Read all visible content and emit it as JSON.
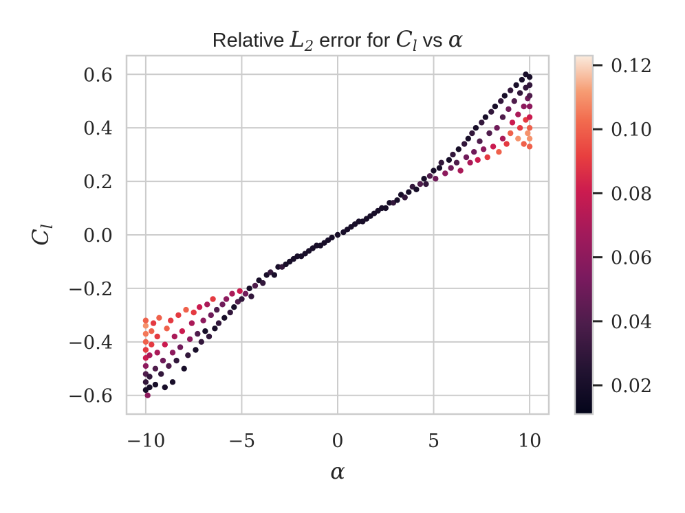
{
  "chart_data": {
    "type": "scatter",
    "title": {
      "prefix": "Relative ",
      "sym1": "L",
      "sub1": "2",
      "middle": " error for ",
      "sym2": "C",
      "sub2": "l",
      "suffix": " vs ",
      "sym3": "α"
    },
    "xlabel": "α",
    "ylabel_main": "C",
    "ylabel_sub": "l",
    "xlim": [
      -11,
      11
    ],
    "ylim": [
      -0.67,
      0.67
    ],
    "xticks": [
      -10,
      -5,
      0,
      5,
      10
    ],
    "xtick_labels": [
      "−10",
      "−5",
      "0",
      "5",
      "10"
    ],
    "yticks": [
      -0.6,
      -0.4,
      -0.2,
      0.0,
      0.2,
      0.4,
      0.6
    ],
    "ytick_labels": [
      "−0.6",
      "−0.4",
      "−0.2",
      "0.0",
      "0.2",
      "0.4",
      "0.6"
    ],
    "grid": true,
    "colormap": "rocket",
    "colorbar": {
      "range": [
        0.011,
        0.123
      ],
      "ticks": [
        0.02,
        0.04,
        0.06,
        0.08,
        0.1,
        0.12
      ],
      "tick_labels": [
        "0.02",
        "0.04",
        "0.06",
        "0.08",
        "0.10",
        "0.12"
      ]
    },
    "points": [
      [
        -10.0,
        -0.58,
        0.02
      ],
      [
        -10.0,
        -0.55,
        0.03
      ],
      [
        -10.0,
        -0.52,
        0.04
      ],
      [
        -10.0,
        -0.49,
        0.06
      ],
      [
        -10.0,
        -0.46,
        0.08
      ],
      [
        -10.0,
        -0.43,
        0.09
      ],
      [
        -10.0,
        -0.4,
        0.1
      ],
      [
        -10.0,
        -0.37,
        0.105
      ],
      [
        -10.0,
        -0.34,
        0.11
      ],
      [
        -10.0,
        -0.32,
        0.1
      ],
      [
        -9.9,
        -0.6,
        0.06
      ],
      [
        -9.8,
        -0.57,
        0.02
      ],
      [
        -9.8,
        -0.53,
        0.03
      ],
      [
        -9.8,
        -0.45,
        0.07
      ],
      [
        -9.7,
        -0.41,
        0.09
      ],
      [
        -9.7,
        -0.36,
        0.1
      ],
      [
        -9.6,
        -0.33,
        0.09
      ],
      [
        -9.5,
        -0.56,
        0.02
      ],
      [
        -9.5,
        -0.5,
        0.04
      ],
      [
        -9.4,
        -0.44,
        0.07
      ],
      [
        -9.4,
        -0.38,
        0.09
      ],
      [
        -9.3,
        -0.31,
        0.1
      ],
      [
        -9.2,
        -0.52,
        0.03
      ],
      [
        -9.1,
        -0.47,
        0.05
      ],
      [
        -9.0,
        -0.57,
        0.02
      ],
      [
        -9.0,
        -0.41,
        0.08
      ],
      [
        -8.9,
        -0.35,
        0.1
      ],
      [
        -8.8,
        -0.49,
        0.04
      ],
      [
        -8.7,
        -0.32,
        0.09
      ],
      [
        -8.6,
        -0.44,
        0.06
      ],
      [
        -8.6,
        -0.55,
        0.02
      ],
      [
        -8.5,
        -0.38,
        0.07
      ],
      [
        -8.4,
        -0.47,
        0.03
      ],
      [
        -8.3,
        -0.3,
        0.09
      ],
      [
        -8.2,
        -0.42,
        0.05
      ],
      [
        -8.1,
        -0.36,
        0.08
      ],
      [
        -8.0,
        -0.5,
        0.02
      ],
      [
        -7.9,
        -0.28,
        0.1
      ],
      [
        -7.8,
        -0.45,
        0.03
      ],
      [
        -7.7,
        -0.39,
        0.06
      ],
      [
        -7.6,
        -0.33,
        0.07
      ],
      [
        -7.5,
        -0.29,
        0.09
      ],
      [
        -7.4,
        -0.43,
        0.02
      ],
      [
        -7.3,
        -0.37,
        0.04
      ],
      [
        -7.2,
        -0.27,
        0.08
      ],
      [
        -7.1,
        -0.4,
        0.03
      ],
      [
        -7.0,
        -0.32,
        0.06
      ],
      [
        -6.9,
        -0.36,
        0.02
      ],
      [
        -6.8,
        -0.26,
        0.07
      ],
      [
        -6.7,
        -0.38,
        0.03
      ],
      [
        -6.6,
        -0.3,
        0.05
      ],
      [
        -6.5,
        -0.24,
        0.09
      ],
      [
        -6.4,
        -0.35,
        0.02
      ],
      [
        -6.3,
        -0.28,
        0.04
      ],
      [
        -6.2,
        -0.33,
        0.03
      ],
      [
        -6.0,
        -0.26,
        0.05
      ],
      [
        -5.9,
        -0.31,
        0.02
      ],
      [
        -5.8,
        -0.24,
        0.06
      ],
      [
        -5.6,
        -0.29,
        0.03
      ],
      [
        -5.5,
        -0.22,
        0.07
      ],
      [
        -5.4,
        -0.27,
        0.02
      ],
      [
        -5.2,
        -0.25,
        0.04
      ],
      [
        -5.1,
        -0.21,
        0.08
      ],
      [
        -5.0,
        -0.24,
        0.03
      ],
      [
        -4.8,
        -0.22,
        0.05
      ],
      [
        -4.6,
        -0.2,
        0.02
      ],
      [
        -4.5,
        -0.23,
        0.03
      ],
      [
        -4.3,
        -0.19,
        0.04
      ],
      [
        -4.1,
        -0.17,
        0.02
      ],
      [
        -3.9,
        -0.18,
        0.03
      ],
      [
        -3.7,
        -0.15,
        0.02
      ],
      [
        -3.5,
        -0.14,
        0.03
      ],
      [
        -3.3,
        -0.15,
        0.02
      ],
      [
        -3.1,
        -0.12,
        0.02
      ],
      [
        -2.9,
        -0.12,
        0.03
      ],
      [
        -2.7,
        -0.11,
        0.02
      ],
      [
        -2.5,
        -0.1,
        0.02
      ],
      [
        -2.3,
        -0.09,
        0.02
      ],
      [
        -2.1,
        -0.08,
        0.02
      ],
      [
        -1.9,
        -0.08,
        0.02
      ],
      [
        -1.7,
        -0.07,
        0.02
      ],
      [
        -1.5,
        -0.06,
        0.02
      ],
      [
        -1.3,
        -0.05,
        0.02
      ],
      [
        -1.1,
        -0.04,
        0.02
      ],
      [
        -0.9,
        -0.04,
        0.02
      ],
      [
        -0.7,
        -0.03,
        0.02
      ],
      [
        -0.5,
        -0.02,
        0.02
      ],
      [
        -0.3,
        -0.01,
        0.02
      ],
      [
        0.0,
        0.0,
        0.02
      ],
      [
        0.3,
        0.01,
        0.02
      ],
      [
        0.5,
        0.02,
        0.02
      ],
      [
        0.7,
        0.03,
        0.02
      ],
      [
        0.9,
        0.04,
        0.02
      ],
      [
        1.1,
        0.05,
        0.02
      ],
      [
        1.3,
        0.05,
        0.02
      ],
      [
        1.5,
        0.06,
        0.02
      ],
      [
        1.7,
        0.07,
        0.02
      ],
      [
        1.9,
        0.08,
        0.02
      ],
      [
        2.1,
        0.09,
        0.02
      ],
      [
        2.3,
        0.1,
        0.02
      ],
      [
        2.5,
        0.1,
        0.02
      ],
      [
        2.7,
        0.12,
        0.02
      ],
      [
        2.9,
        0.12,
        0.03
      ],
      [
        3.1,
        0.13,
        0.02
      ],
      [
        3.3,
        0.15,
        0.02
      ],
      [
        3.5,
        0.14,
        0.03
      ],
      [
        3.7,
        0.16,
        0.02
      ],
      [
        3.9,
        0.18,
        0.03
      ],
      [
        4.1,
        0.17,
        0.02
      ],
      [
        4.3,
        0.19,
        0.04
      ],
      [
        4.5,
        0.21,
        0.02
      ],
      [
        4.6,
        0.19,
        0.03
      ],
      [
        4.8,
        0.22,
        0.04
      ],
      [
        5.0,
        0.24,
        0.02
      ],
      [
        5.1,
        0.21,
        0.05
      ],
      [
        5.3,
        0.25,
        0.02
      ],
      [
        5.4,
        0.27,
        0.03
      ],
      [
        5.6,
        0.23,
        0.06
      ],
      [
        5.8,
        0.28,
        0.02
      ],
      [
        5.9,
        0.25,
        0.05
      ],
      [
        6.0,
        0.3,
        0.03
      ],
      [
        6.2,
        0.27,
        0.04
      ],
      [
        6.3,
        0.32,
        0.02
      ],
      [
        6.4,
        0.24,
        0.07
      ],
      [
        6.6,
        0.34,
        0.03
      ],
      [
        6.7,
        0.29,
        0.05
      ],
      [
        6.8,
        0.36,
        0.02
      ],
      [
        6.9,
        0.27,
        0.07
      ],
      [
        7.0,
        0.38,
        0.03
      ],
      [
        7.1,
        0.31,
        0.05
      ],
      [
        7.2,
        0.4,
        0.02
      ],
      [
        7.3,
        0.28,
        0.08
      ],
      [
        7.4,
        0.35,
        0.04
      ],
      [
        7.5,
        0.42,
        0.03
      ],
      [
        7.6,
        0.32,
        0.06
      ],
      [
        7.7,
        0.44,
        0.02
      ],
      [
        7.8,
        0.29,
        0.09
      ],
      [
        7.9,
        0.38,
        0.04
      ],
      [
        8.0,
        0.46,
        0.03
      ],
      [
        8.1,
        0.33,
        0.08
      ],
      [
        8.2,
        0.48,
        0.02
      ],
      [
        8.3,
        0.4,
        0.05
      ],
      [
        8.4,
        0.31,
        0.1
      ],
      [
        8.5,
        0.5,
        0.03
      ],
      [
        8.6,
        0.36,
        0.07
      ],
      [
        8.6,
        0.44,
        0.04
      ],
      [
        8.7,
        0.52,
        0.02
      ],
      [
        8.8,
        0.34,
        0.09
      ],
      [
        8.9,
        0.47,
        0.05
      ],
      [
        9.0,
        0.54,
        0.03
      ],
      [
        9.0,
        0.38,
        0.1
      ],
      [
        9.1,
        0.42,
        0.08
      ],
      [
        9.2,
        0.5,
        0.04
      ],
      [
        9.3,
        0.56,
        0.02
      ],
      [
        9.4,
        0.36,
        0.11
      ],
      [
        9.4,
        0.45,
        0.07
      ],
      [
        9.5,
        0.53,
        0.03
      ],
      [
        9.5,
        0.4,
        0.09
      ],
      [
        9.6,
        0.58,
        0.02
      ],
      [
        9.7,
        0.34,
        0.1
      ],
      [
        9.7,
        0.48,
        0.06
      ],
      [
        9.8,
        0.55,
        0.03
      ],
      [
        9.8,
        0.43,
        0.09
      ],
      [
        9.8,
        0.6,
        0.02
      ],
      [
        9.9,
        0.38,
        0.11
      ],
      [
        9.9,
        0.51,
        0.05
      ],
      [
        10.0,
        0.33,
        0.1
      ],
      [
        10.0,
        0.36,
        0.11
      ],
      [
        10.0,
        0.4,
        0.1
      ],
      [
        10.0,
        0.44,
        0.08
      ],
      [
        10.0,
        0.48,
        0.06
      ],
      [
        10.0,
        0.52,
        0.04
      ],
      [
        10.0,
        0.56,
        0.03
      ],
      [
        10.0,
        0.59,
        0.02
      ]
    ]
  }
}
